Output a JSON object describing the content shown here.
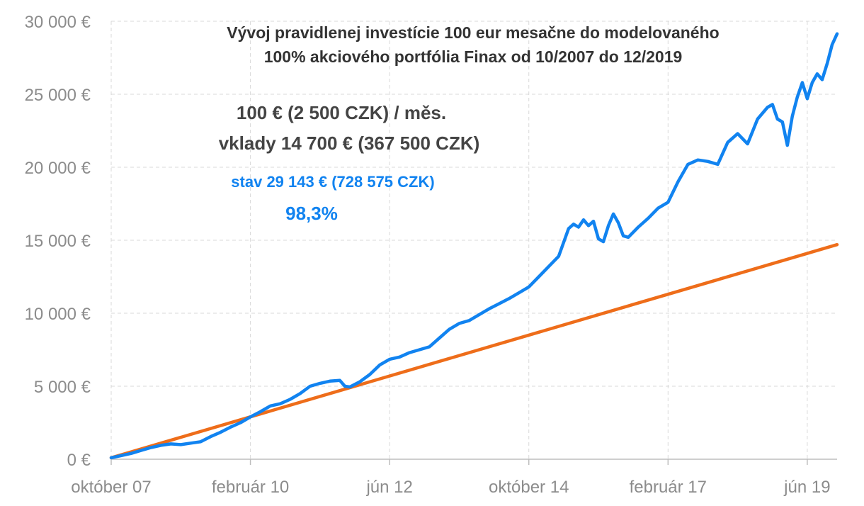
{
  "chart_data": {
    "type": "line",
    "title": "Vývoj pravidlenej investície 100 eur mesačne do modelovaného",
    "subtitle": "100% akciového portfólia Finax od 10/2007 do 12/2019",
    "xlabel": "",
    "ylabel": "",
    "ylim": [
      0,
      30000
    ],
    "yticks": [
      {
        "value": 0,
        "label": "0 €"
      },
      {
        "value": 5000,
        "label": "5 000 €"
      },
      {
        "value": 10000,
        "label": "10 000 €"
      },
      {
        "value": 15000,
        "label": "15 000 €"
      },
      {
        "value": 20000,
        "label": "20 000 €"
      },
      {
        "value": 25000,
        "label": "25 000 €"
      },
      {
        "value": 30000,
        "label": "30 000 €"
      }
    ],
    "xlim": [
      0,
      146
    ],
    "xticks": [
      {
        "value": 0,
        "label": "október 07"
      },
      {
        "value": 28,
        "label": "február 10"
      },
      {
        "value": 56,
        "label": "jún 12"
      },
      {
        "value": 84,
        "label": "október 14"
      },
      {
        "value": 112,
        "label": "február 17"
      },
      {
        "value": 140,
        "label": "jún 19"
      }
    ],
    "grid": true,
    "legend": "none",
    "annotations": {
      "monthly": "100 € (2 500 CZK) / měs.",
      "deposits": "vklady 14 700 € (367 500 CZK)",
      "state": "stav 29 143 € (728 575 CZK)",
      "return": "98,3%"
    },
    "colors": {
      "portfolio": "#1183f0",
      "deposits": "#ee6d1a",
      "annotation_blue": "#1183f0"
    },
    "series": [
      {
        "key": "portfolio",
        "points": [
          [
            0,
            100
          ],
          [
            2,
            250
          ],
          [
            4,
            400
          ],
          [
            6,
            600
          ],
          [
            8,
            800
          ],
          [
            10,
            950
          ],
          [
            12,
            1050
          ],
          [
            14,
            1000
          ],
          [
            16,
            1100
          ],
          [
            18,
            1200
          ],
          [
            20,
            1550
          ],
          [
            22,
            1850
          ],
          [
            24,
            2200
          ],
          [
            26,
            2500
          ],
          [
            28,
            2900
          ],
          [
            30,
            3250
          ],
          [
            32,
            3650
          ],
          [
            34,
            3800
          ],
          [
            36,
            4100
          ],
          [
            38,
            4500
          ],
          [
            40,
            5000
          ],
          [
            42,
            5200
          ],
          [
            44,
            5350
          ],
          [
            46,
            5400
          ],
          [
            47,
            5000
          ],
          [
            48,
            4950
          ],
          [
            50,
            5300
          ],
          [
            52,
            5800
          ],
          [
            54,
            6450
          ],
          [
            56,
            6850
          ],
          [
            58,
            7000
          ],
          [
            60,
            7300
          ],
          [
            62,
            7500
          ],
          [
            64,
            7700
          ],
          [
            66,
            8300
          ],
          [
            68,
            8900
          ],
          [
            70,
            9300
          ],
          [
            72,
            9500
          ],
          [
            74,
            9900
          ],
          [
            76,
            10300
          ],
          [
            78,
            10650
          ],
          [
            80,
            11000
          ],
          [
            82,
            11400
          ],
          [
            84,
            11800
          ],
          [
            86,
            12500
          ],
          [
            88,
            13200
          ],
          [
            90,
            13900
          ],
          [
            92,
            15800
          ],
          [
            93,
            16100
          ],
          [
            94,
            15900
          ],
          [
            95,
            16400
          ],
          [
            96,
            16000
          ],
          [
            97,
            16300
          ],
          [
            98,
            15100
          ],
          [
            99,
            14900
          ],
          [
            100,
            16000
          ],
          [
            101,
            16800
          ],
          [
            102,
            16200
          ],
          [
            103,
            15300
          ],
          [
            104,
            15200
          ],
          [
            106,
            15900
          ],
          [
            108,
            16500
          ],
          [
            110,
            17200
          ],
          [
            112,
            17600
          ],
          [
            114,
            19000
          ],
          [
            116,
            20200
          ],
          [
            118,
            20500
          ],
          [
            120,
            20400
          ],
          [
            122,
            20200
          ],
          [
            124,
            21700
          ],
          [
            126,
            22300
          ],
          [
            128,
            21600
          ],
          [
            130,
            23300
          ],
          [
            132,
            24100
          ],
          [
            133,
            24300
          ],
          [
            134,
            23300
          ],
          [
            135,
            23100
          ],
          [
            136,
            21500
          ],
          [
            137,
            23500
          ],
          [
            138,
            24800
          ],
          [
            139,
            25800
          ],
          [
            140,
            24700
          ],
          [
            141,
            25800
          ],
          [
            142,
            26400
          ],
          [
            143,
            26000
          ],
          [
            144,
            27100
          ],
          [
            145,
            28400
          ],
          [
            146,
            29143
          ]
        ]
      },
      {
        "key": "deposits",
        "points": [
          [
            0,
            100
          ],
          [
            146,
            14700
          ]
        ]
      }
    ]
  }
}
